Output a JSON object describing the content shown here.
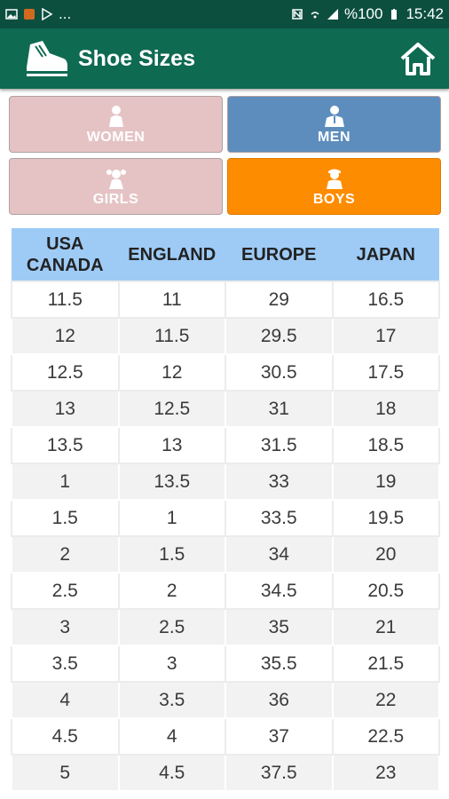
{
  "status_bar": {
    "battery": "%100",
    "time": "15:42",
    "dots": "..."
  },
  "app": {
    "title": "Shoe Sizes"
  },
  "categories": [
    {
      "label": "WOMEN",
      "icon": "woman-icon",
      "color": "#e5c3c4"
    },
    {
      "label": "MEN",
      "icon": "man-icon",
      "color": "#5d8dbd"
    },
    {
      "label": "GIRLS",
      "icon": "girl-icon",
      "color": "#e5c3c4"
    },
    {
      "label": "BOYS",
      "icon": "boy-icon",
      "color": "#fe8c00"
    }
  ],
  "table": {
    "headers": [
      "USA\nCANADA",
      "ENGLAND",
      "EUROPE",
      "JAPAN"
    ],
    "rows": [
      [
        "11.5",
        "11",
        "29",
        "16.5"
      ],
      [
        "12",
        "11.5",
        "29.5",
        "17"
      ],
      [
        "12.5",
        "12",
        "30.5",
        "17.5"
      ],
      [
        "13",
        "12.5",
        "31",
        "18"
      ],
      [
        "13.5",
        "13",
        "31.5",
        "18.5"
      ],
      [
        "1",
        "13.5",
        "33",
        "19"
      ],
      [
        "1.5",
        "1",
        "33.5",
        "19.5"
      ],
      [
        "2",
        "1.5",
        "34",
        "20"
      ],
      [
        "2.5",
        "2",
        "34.5",
        "20.5"
      ],
      [
        "3",
        "2.5",
        "35",
        "21"
      ],
      [
        "3.5",
        "3",
        "35.5",
        "21.5"
      ],
      [
        "4",
        "3.5",
        "36",
        "22"
      ],
      [
        "4.5",
        "4",
        "37",
        "22.5"
      ],
      [
        "5",
        "4.5",
        "37.5",
        "23"
      ]
    ]
  },
  "colors": {
    "app_bar": "#0f6a52",
    "status_bar": "#0d4f3f",
    "header_row": "#9ecbf6"
  }
}
